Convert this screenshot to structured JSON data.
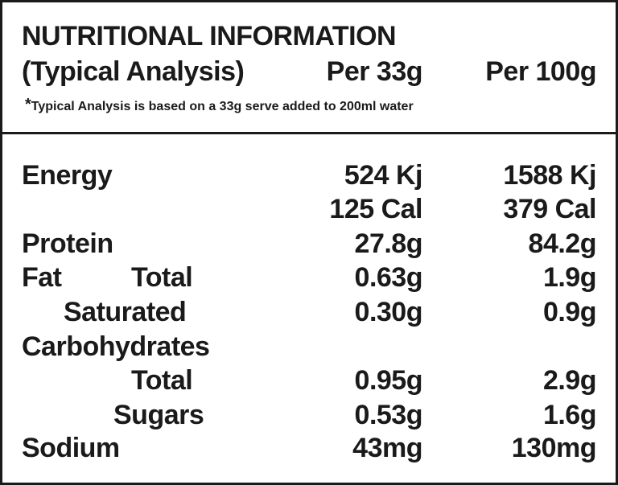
{
  "header": {
    "title": "NUTRITIONAL INFORMATION",
    "subtitle": "(Typical Analysis)",
    "col1": "Per 33g",
    "col2": "Per 100g",
    "footnote_mark": "*",
    "footnote": "Typical Analysis is based on a 33g serve added to 200ml water"
  },
  "rows": [
    {
      "label": "Energy",
      "per33": "524 Kj",
      "per100": "1588 Kj"
    },
    {
      "label": "",
      "per33": "125 Cal",
      "per100": "379 Cal"
    },
    {
      "label": "Protein",
      "per33": "27.8g",
      "per100": "84.2g"
    },
    {
      "label": "Fat",
      "sublabel": "Total",
      "per33": "0.63g",
      "per100": "1.9g"
    },
    {
      "label": "Saturated",
      "per33": "0.30g",
      "per100": "0.9g"
    },
    {
      "label": "Carbohydrates",
      "per33": "",
      "per100": ""
    },
    {
      "label": "Total",
      "per33": "0.95g",
      "per100": "2.9g"
    },
    {
      "label": "Sugars",
      "per33": "0.53g",
      "per100": "1.6g"
    },
    {
      "label": "Sodium",
      "per33": "43mg",
      "per100": "130mg"
    }
  ]
}
